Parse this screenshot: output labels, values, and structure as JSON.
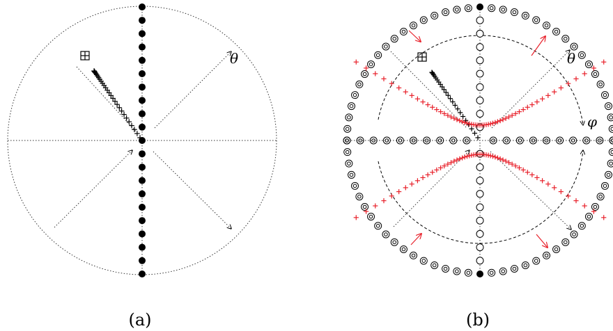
{
  "panels": [
    {
      "id": "a",
      "caption": "(a)",
      "axis_label": "θ"
    },
    {
      "id": "b",
      "caption": "(b)",
      "axis_label_theta": "θ",
      "axis_label_phi": "φ"
    }
  ],
  "colors": {
    "ink": "#000000",
    "accent": "#e8202a",
    "dotted": "#333333"
  },
  "markers": {
    "filled": "filled-circle",
    "open": "open-circle",
    "ring": "double-ring-circle",
    "cross": "plus-marker",
    "boxed_cross": "boxed-plus-marker"
  }
}
